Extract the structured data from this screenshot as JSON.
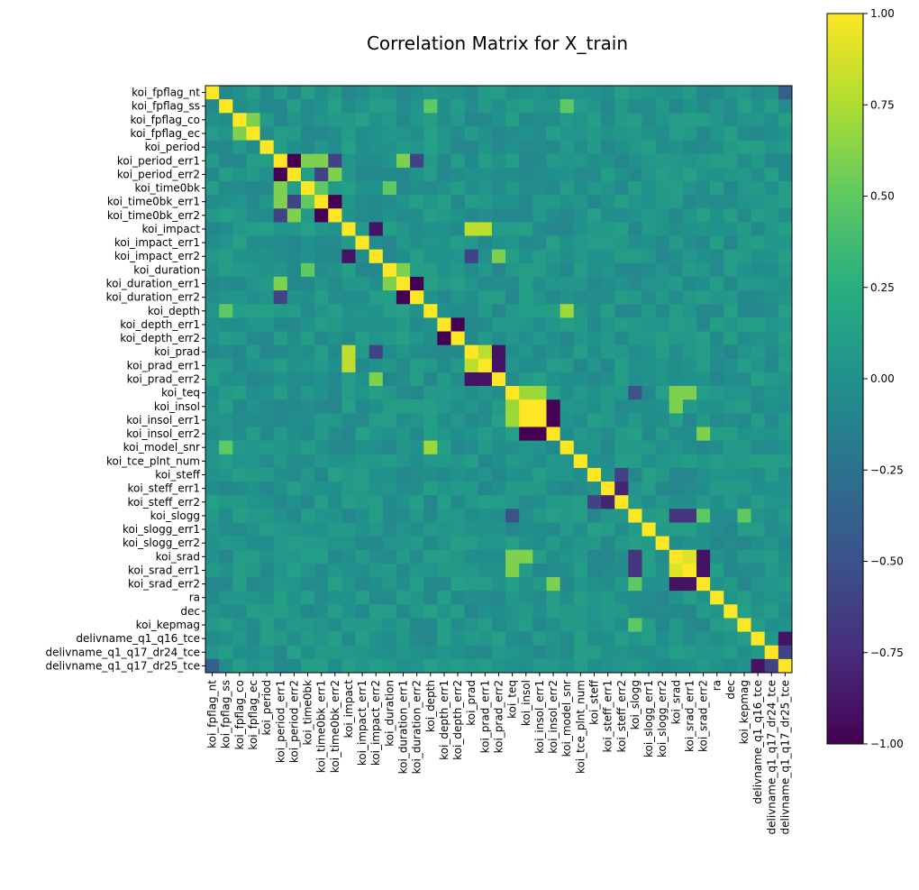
{
  "chart_data": {
    "type": "heatmap",
    "title": "Correlation Matrix for X_train",
    "xlabel": "",
    "ylabel": "",
    "colormap": "viridis",
    "colorbar_range": [
      -1.0,
      1.0
    ],
    "colorbar_ticks": [
      "1.00",
      "0.75",
      "0.50",
      "0.25",
      "0.00",
      "−0.25",
      "−0.50",
      "−0.75",
      "−1.00"
    ],
    "colorbar_tick_values": [
      1.0,
      0.75,
      0.5,
      0.25,
      0.0,
      -0.25,
      -0.5,
      -0.75,
      -1.0
    ],
    "labels": [
      "koi_fpflag_nt",
      "koi_fpflag_ss",
      "koi_fpflag_co",
      "koi_fpflag_ec",
      "koi_period",
      "koi_period_err1",
      "koi_period_err2",
      "koi_time0bk",
      "koi_time0bk_err1",
      "koi_time0bk_err2",
      "koi_impact",
      "koi_impact_err1",
      "koi_impact_err2",
      "koi_duration",
      "koi_duration_err1",
      "koi_duration_err2",
      "koi_depth",
      "koi_depth_err1",
      "koi_depth_err2",
      "koi_prad",
      "koi_prad_err1",
      "koi_prad_err2",
      "koi_teq",
      "koi_insol",
      "koi_insol_err1",
      "koi_insol_err2",
      "koi_model_snr",
      "koi_tce_plnt_num",
      "koi_steff",
      "koi_steff_err1",
      "koi_steff_err2",
      "koi_slogg",
      "koi_slogg_err1",
      "koi_slogg_err2",
      "koi_srad",
      "koi_srad_err1",
      "koi_srad_err2",
      "ra",
      "dec",
      "koi_kepmag",
      "delivname_q1_q16_tce",
      "delivname_q1_q17_dr24_tce",
      "delivname_q1_q17_dr25_tce"
    ],
    "notable_correlations": [
      {
        "a": "koi_fpflag_co",
        "b": "koi_fpflag_ec",
        "value": 0.6
      },
      {
        "a": "koi_period",
        "b": "koi_period_err1",
        "value": 0.1
      },
      {
        "a": "koi_period_err1",
        "b": "koi_period_err2",
        "value": -1.0
      },
      {
        "a": "koi_period_err1",
        "b": "koi_time0bk",
        "value": 0.6
      },
      {
        "a": "koi_period_err1",
        "b": "koi_time0bk_err1",
        "value": 0.6
      },
      {
        "a": "koi_period_err1",
        "b": "koi_time0bk_err2",
        "value": -0.6
      },
      {
        "a": "koi_period_err1",
        "b": "koi_duration_err1",
        "value": 0.6
      },
      {
        "a": "koi_period_err1",
        "b": "koi_duration_err2",
        "value": -0.6
      },
      {
        "a": "koi_period_err2",
        "b": "koi_time0bk_err1",
        "value": -0.6
      },
      {
        "a": "koi_period_err2",
        "b": "koi_time0bk_err2",
        "value": 0.6
      },
      {
        "a": "koi_time0bk",
        "b": "koi_time0bk_err1",
        "value": 0.5
      },
      {
        "a": "koi_time0bk_err1",
        "b": "koi_time0bk_err2",
        "value": -1.0
      },
      {
        "a": "koi_time0bk",
        "b": "koi_duration",
        "value": 0.5
      },
      {
        "a": "koi_impact",
        "b": "koi_impact_err2",
        "value": -0.9
      },
      {
        "a": "koi_impact",
        "b": "koi_prad",
        "value": 0.8
      },
      {
        "a": "koi_impact",
        "b": "koi_prad_err1",
        "value": 0.8
      },
      {
        "a": "koi_impact_err2",
        "b": "koi_prad",
        "value": -0.6
      },
      {
        "a": "koi_impact_err2",
        "b": "koi_prad_err2",
        "value": 0.6
      },
      {
        "a": "koi_duration",
        "b": "koi_duration_err1",
        "value": 0.6
      },
      {
        "a": "koi_duration_err1",
        "b": "koi_duration_err2",
        "value": -1.0
      },
      {
        "a": "koi_depth",
        "b": "koi_model_snr",
        "value": 0.7
      },
      {
        "a": "koi_fpflag_ss",
        "b": "koi_model_snr",
        "value": 0.5
      },
      {
        "a": "koi_fpflag_ss",
        "b": "koi_depth",
        "value": 0.5
      },
      {
        "a": "koi_depth_err1",
        "b": "koi_depth_err2",
        "value": -1.0
      },
      {
        "a": "koi_prad",
        "b": "koi_prad_err1",
        "value": 0.8
      },
      {
        "a": "koi_prad",
        "b": "koi_prad_err2",
        "value": -0.9
      },
      {
        "a": "koi_prad_err1",
        "b": "koi_prad_err2",
        "value": -0.9
      },
      {
        "a": "koi_teq",
        "b": "koi_insol",
        "value": 0.7
      },
      {
        "a": "koi_teq",
        "b": "koi_insol_err1",
        "value": 0.7
      },
      {
        "a": "koi_insol",
        "b": "koi_insol_err1",
        "value": 1.0
      },
      {
        "a": "koi_insol",
        "b": "koi_insol_err2",
        "value": -1.0
      },
      {
        "a": "koi_insol_err1",
        "b": "koi_insol_err2",
        "value": -1.0
      },
      {
        "a": "koi_teq",
        "b": "koi_srad",
        "value": 0.6
      },
      {
        "a": "koi_teq",
        "b": "koi_srad_err1",
        "value": 0.6
      },
      {
        "a": "koi_teq",
        "b": "koi_slogg",
        "value": -0.5
      },
      {
        "a": "koi_insol",
        "b": "koi_srad",
        "value": 0.6
      },
      {
        "a": "koi_insol_err2",
        "b": "koi_srad_err2",
        "value": 0.6
      },
      {
        "a": "koi_steff",
        "b": "koi_steff_err2",
        "value": -0.6
      },
      {
        "a": "koi_steff_err1",
        "b": "koi_steff_err2",
        "value": -0.8
      },
      {
        "a": "koi_slogg",
        "b": "koi_srad",
        "value": -0.7
      },
      {
        "a": "koi_slogg",
        "b": "koi_srad_err1",
        "value": -0.7
      },
      {
        "a": "koi_slogg",
        "b": "koi_srad_err2",
        "value": 0.5
      },
      {
        "a": "koi_slogg",
        "b": "koi_kepmag",
        "value": 0.5
      },
      {
        "a": "koi_srad",
        "b": "koi_srad_err1",
        "value": 0.9
      },
      {
        "a": "koi_srad",
        "b": "koi_srad_err2",
        "value": -0.9
      },
      {
        "a": "koi_srad_err1",
        "b": "koi_srad_err2",
        "value": -0.9
      },
      {
        "a": "delivname_q1_q16_tce",
        "b": "delivname_q1_q17_dr25_tce",
        "value": -0.9
      },
      {
        "a": "delivname_q1_q17_dr24_tce",
        "b": "delivname_q1_q17_dr25_tce",
        "value": -0.6
      },
      {
        "a": "koi_fpflag_nt",
        "b": "delivname_q1_q17_dr25_tce",
        "value": -0.4
      }
    ],
    "baseline_value": 0.02
  }
}
